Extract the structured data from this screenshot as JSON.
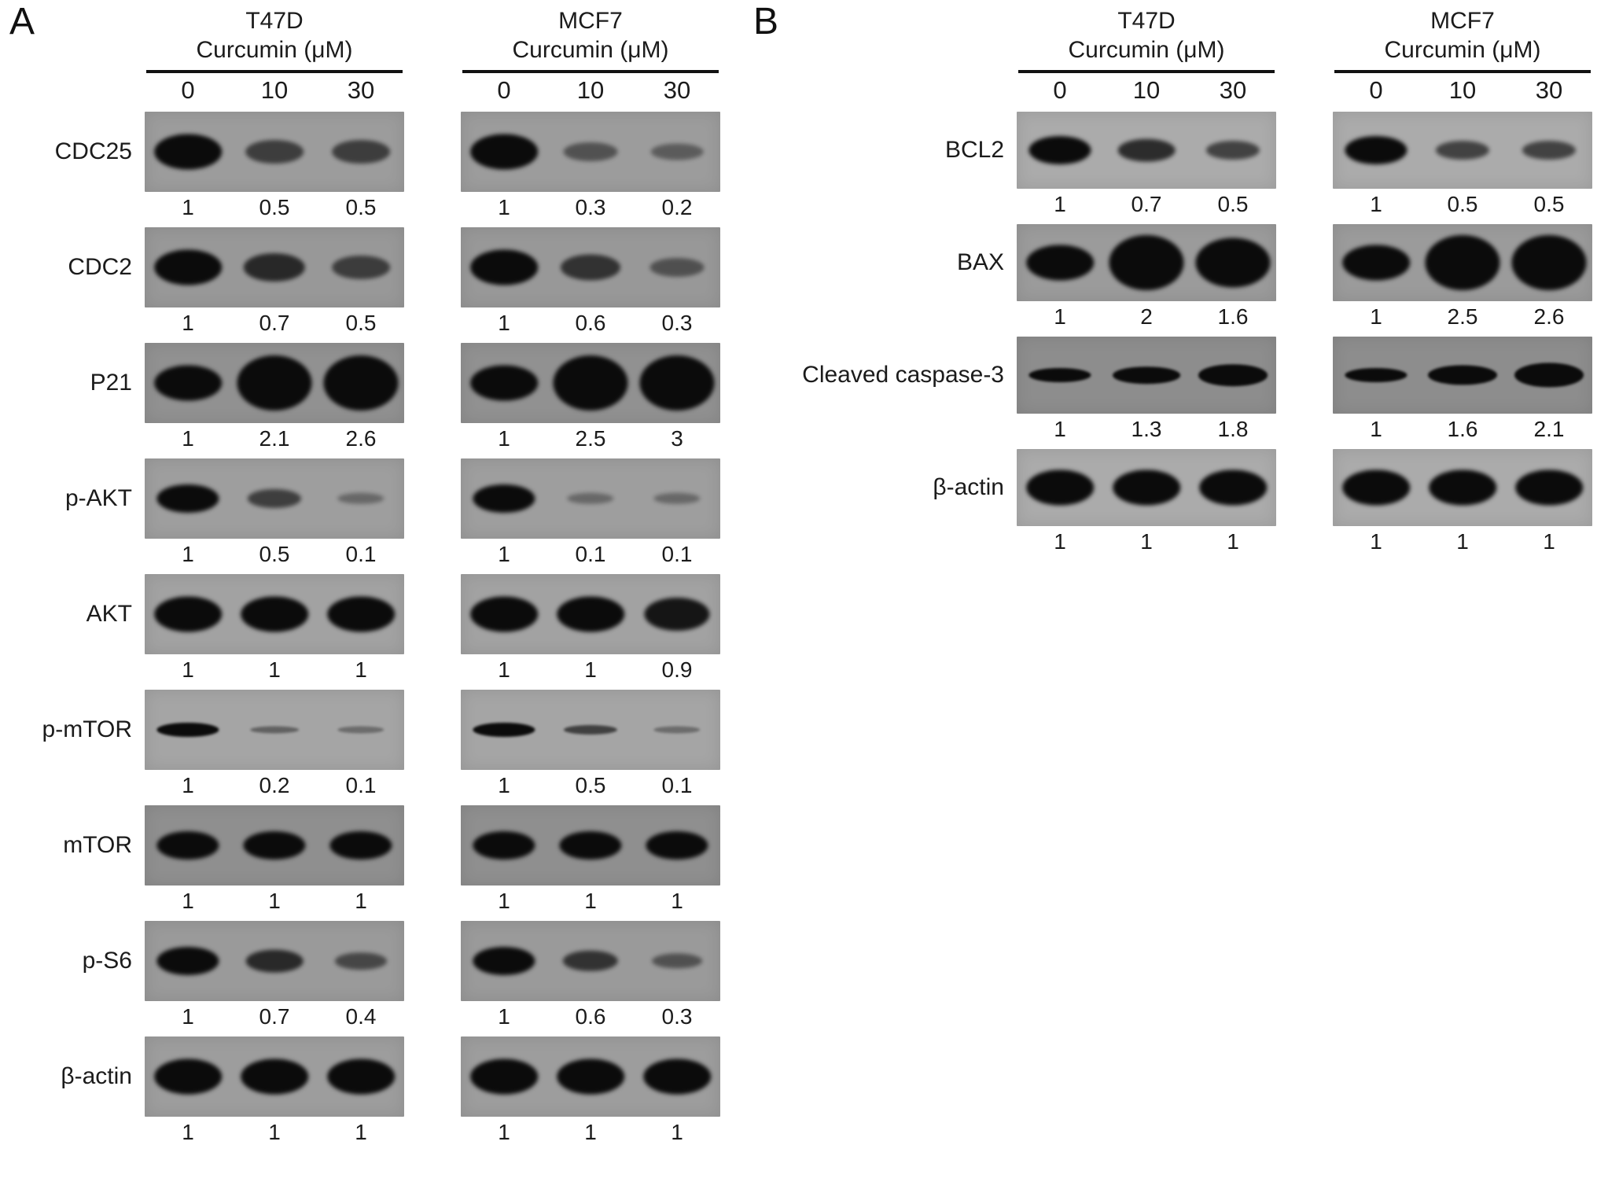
{
  "figure": {
    "panels": [
      {
        "label": "A",
        "columns": [
          {
            "cell_line": "T47D",
            "treatment_label": "Curcumin (μM)",
            "doses": [
              "0",
              "10",
              "30"
            ]
          },
          {
            "cell_line": "MCF7",
            "treatment_label": "Curcumin (μM)",
            "doses": [
              "0",
              "10",
              "30"
            ]
          }
        ],
        "blots": [
          {
            "protein": "CDC25",
            "bg": "#9c9c9c",
            "band_weight": "heavy",
            "lanes": [
              {
                "cell_line": "T47D",
                "values": [
                  1,
                  0.5,
                  0.5
                ]
              },
              {
                "cell_line": "MCF7",
                "values": [
                  1,
                  0.3,
                  0.2
                ]
              }
            ]
          },
          {
            "protein": "CDC2",
            "bg": "#989898",
            "band_weight": "heavy",
            "lanes": [
              {
                "cell_line": "T47D",
                "values": [
                  1,
                  0.7,
                  0.5
                ]
              },
              {
                "cell_line": "MCF7",
                "values": [
                  1,
                  0.6,
                  0.3
                ]
              }
            ]
          },
          {
            "protein": "P21",
            "bg": "#919191",
            "band_weight": "heavy",
            "lanes": [
              {
                "cell_line": "T47D",
                "values": [
                  1,
                  2.1,
                  2.6
                ]
              },
              {
                "cell_line": "MCF7",
                "values": [
                  1,
                  2.5,
                  3
                ]
              }
            ]
          },
          {
            "protein": "p-AKT",
            "bg": "#9e9e9e",
            "band_weight": "normal",
            "lanes": [
              {
                "cell_line": "T47D",
                "values": [
                  1,
                  0.5,
                  0.1
                ]
              },
              {
                "cell_line": "MCF7",
                "values": [
                  1,
                  0.1,
                  0.1
                ]
              }
            ]
          },
          {
            "protein": "AKT",
            "bg": "#a2a2a2",
            "band_weight": "heavy",
            "lanes": [
              {
                "cell_line": "T47D",
                "values": [
                  1,
                  1,
                  1
                ]
              },
              {
                "cell_line": "MCF7",
                "values": [
                  1,
                  1,
                  0.9
                ]
              }
            ]
          },
          {
            "protein": "p-mTOR",
            "bg": "#a5a5a5",
            "band_weight": "thin",
            "lanes": [
              {
                "cell_line": "T47D",
                "values": [
                  1,
                  0.2,
                  0.1
                ]
              },
              {
                "cell_line": "MCF7",
                "values": [
                  1,
                  0.5,
                  0.1
                ]
              }
            ]
          },
          {
            "protein": "mTOR",
            "bg": "#8f8f8f",
            "band_weight": "normal",
            "lanes": [
              {
                "cell_line": "T47D",
                "values": [
                  1,
                  1,
                  1
                ]
              },
              {
                "cell_line": "MCF7",
                "values": [
                  1,
                  1,
                  1
                ]
              }
            ]
          },
          {
            "protein": "p-S6",
            "bg": "#9a9a9a",
            "band_weight": "normal",
            "lanes": [
              {
                "cell_line": "T47D",
                "values": [
                  1,
                  0.7,
                  0.4
                ]
              },
              {
                "cell_line": "MCF7",
                "values": [
                  1,
                  0.6,
                  0.3
                ]
              }
            ]
          },
          {
            "protein": "β-actin",
            "bg": "#9d9d9d",
            "band_weight": "heavy",
            "lanes": [
              {
                "cell_line": "T47D",
                "values": [
                  1,
                  1,
                  1
                ]
              },
              {
                "cell_line": "MCF7",
                "values": [
                  1,
                  1,
                  1
                ]
              }
            ]
          }
        ]
      },
      {
        "label": "B",
        "columns": [
          {
            "cell_line": "T47D",
            "treatment_label": "Curcumin (μM)",
            "doses": [
              "0",
              "10",
              "30"
            ]
          },
          {
            "cell_line": "MCF7",
            "treatment_label": "Curcumin (μM)",
            "doses": [
              "0",
              "10",
              "30"
            ]
          }
        ],
        "blots": [
          {
            "protein": "BCL2",
            "bg": "#ababab",
            "band_weight": "normal",
            "lanes": [
              {
                "cell_line": "T47D",
                "values": [
                  1,
                  0.7,
                  0.5
                ]
              },
              {
                "cell_line": "MCF7",
                "values": [
                  1,
                  0.5,
                  0.5
                ]
              }
            ]
          },
          {
            "protein": "BAX",
            "bg": "#9b9b9b",
            "band_weight": "heavy",
            "lanes": [
              {
                "cell_line": "T47D",
                "values": [
                  1,
                  2,
                  1.6
                ]
              },
              {
                "cell_line": "MCF7",
                "values": [
                  1,
                  2.5,
                  2.6
                ]
              }
            ]
          },
          {
            "protein": "Cleaved caspase-3",
            "bg": "#8d8d8d",
            "band_weight": "thin",
            "lanes": [
              {
                "cell_line": "T47D",
                "values": [
                  1,
                  1.3,
                  1.8
                ]
              },
              {
                "cell_line": "MCF7",
                "values": [
                  1,
                  1.6,
                  2.1
                ]
              }
            ]
          },
          {
            "protein": "β-actin",
            "bg": "#ababab",
            "band_weight": "heavy",
            "lanes": [
              {
                "cell_line": "T47D",
                "values": [
                  1,
                  1,
                  1
                ]
              },
              {
                "cell_line": "MCF7",
                "values": [
                  1,
                  1,
                  1
                ]
              }
            ]
          }
        ]
      }
    ]
  }
}
